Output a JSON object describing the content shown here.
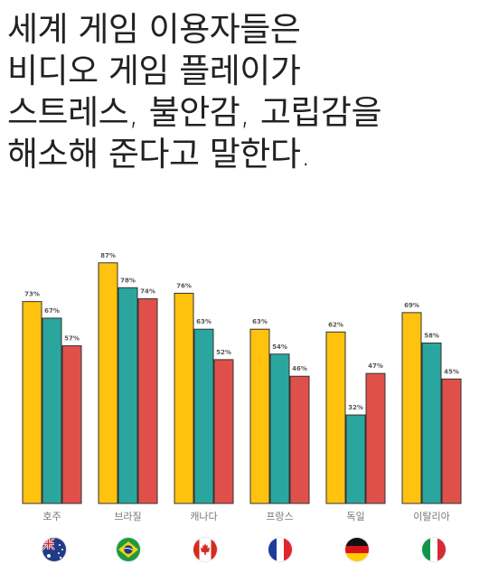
{
  "headline": {
    "lines": [
      "세계 게임 이용자들은",
      "비디오 게임 플레이가",
      "스트레스, 불안감, 고립감을",
      "해소해 준다고 말한다."
    ]
  },
  "colors": {
    "series1": "#FFC20E",
    "series2": "#2AA69E",
    "series3": "#E0504A",
    "axis": "#777777"
  },
  "flags": [
    "australia-flag",
    "brazil-flag",
    "canada-flag",
    "france-flag",
    "germany-flag",
    "italy-flag"
  ],
  "chart_data": {
    "type": "bar",
    "categories": [
      "호주",
      "브라질",
      "캐나다",
      "프랑스",
      "독일",
      "이탈리아"
    ],
    "series": [
      {
        "values": [
          73,
          87,
          76,
          63,
          62,
          69
        ]
      },
      {
        "values": [
          67,
          78,
          63,
          54,
          32,
          58
        ]
      },
      {
        "values": [
          57,
          74,
          52,
          46,
          47,
          45
        ]
      }
    ],
    "value_suffix": "%",
    "ylim": [
      0,
      100
    ],
    "grid": false,
    "legend": "none"
  }
}
